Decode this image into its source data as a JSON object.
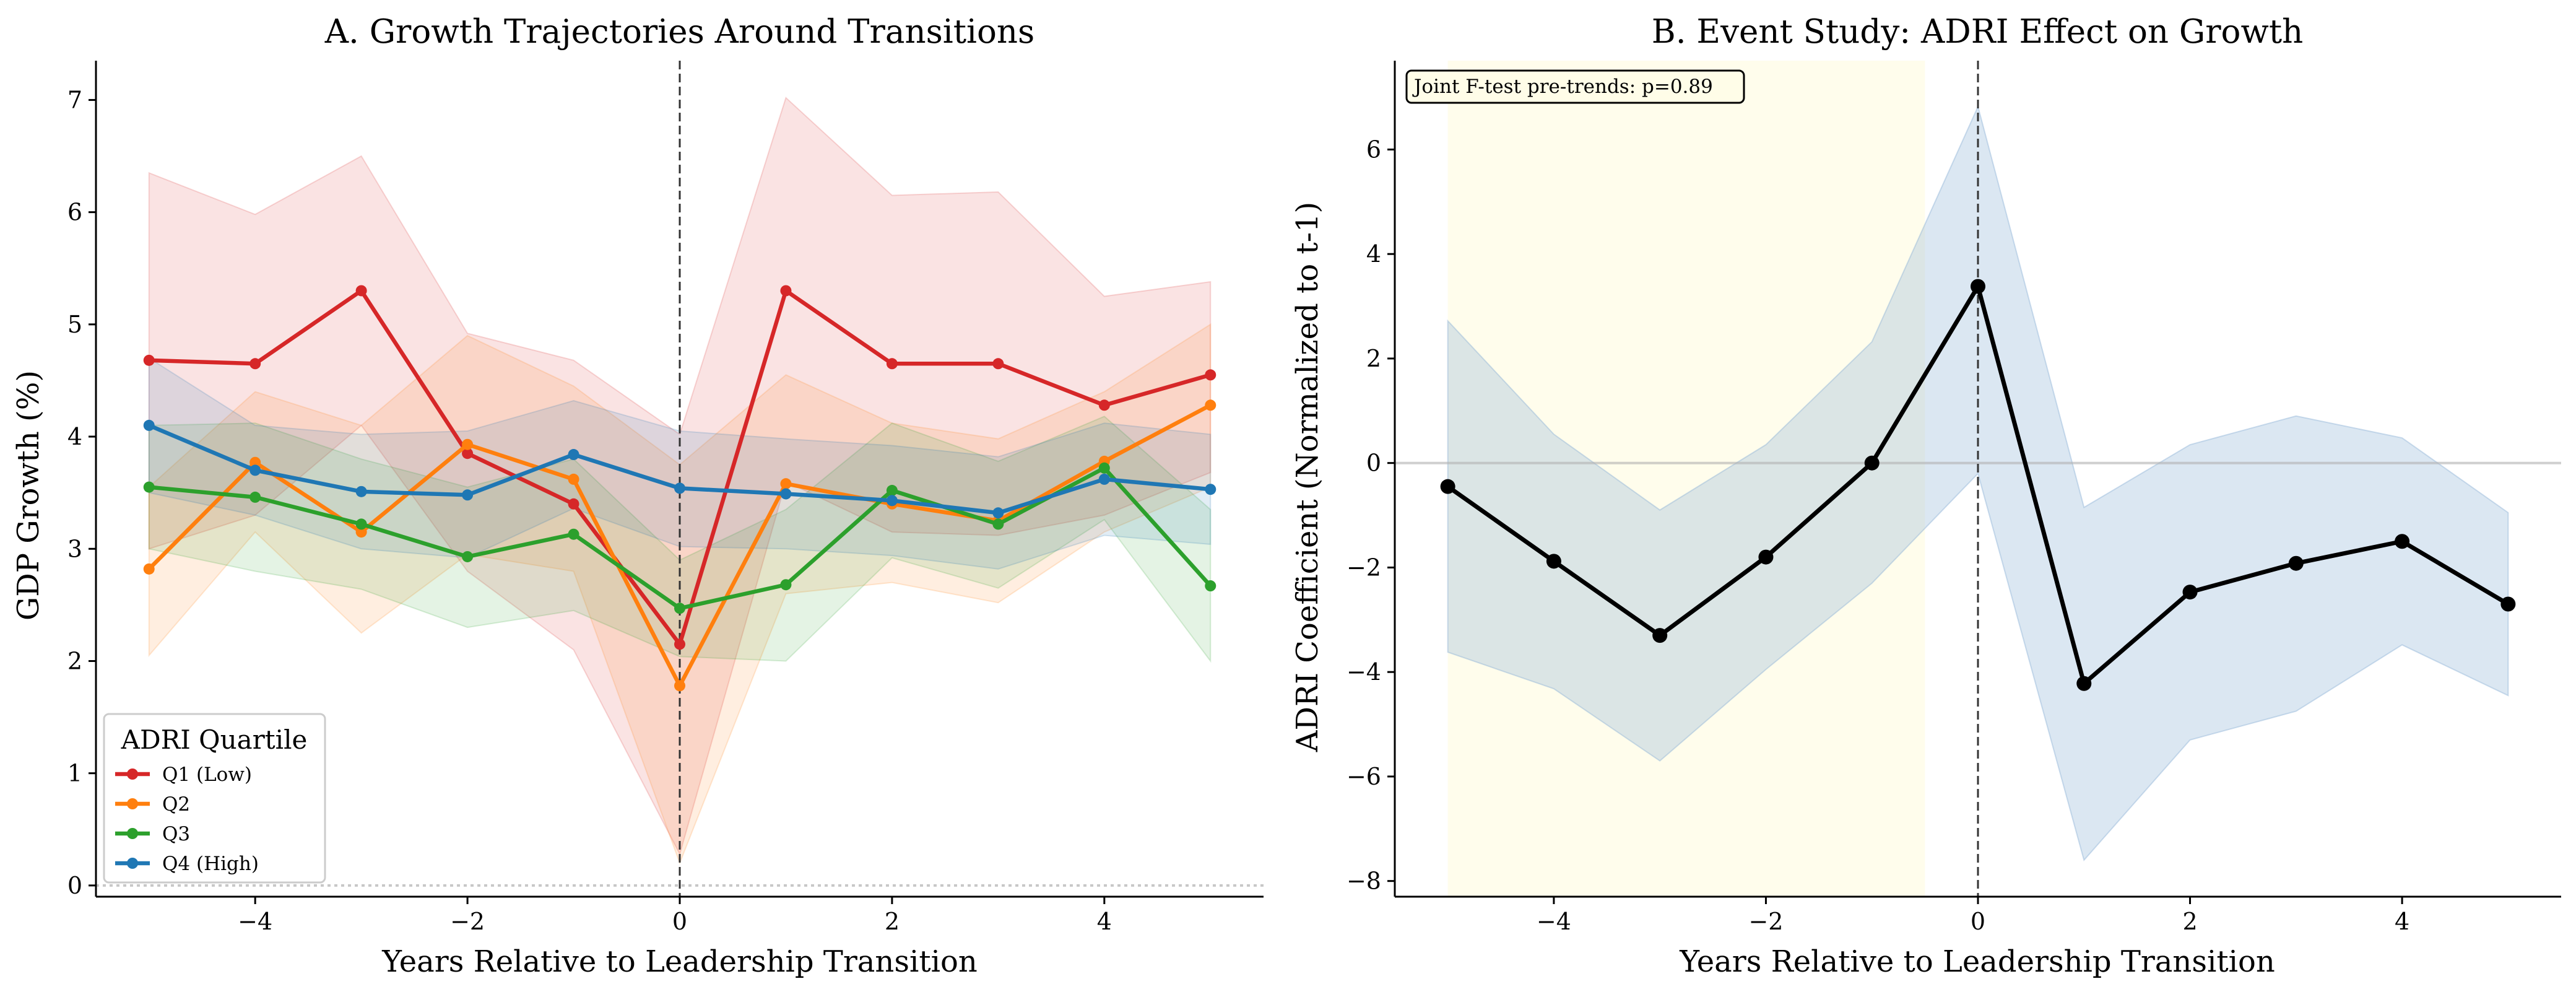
{
  "chart_data": [
    {
      "type": "line",
      "title": "A. Growth Trajectories Around Transitions",
      "xlabel": "Years Relative to Leadership Transition",
      "ylabel": "GDP Growth (%)",
      "xlim": [
        -5.5,
        5.5
      ],
      "ylim": [
        -0.1,
        7.35
      ],
      "xticks": [
        "−4",
        "−2",
        "0",
        "2",
        "4"
      ],
      "xtick_values": [
        -4,
        -2,
        0,
        2,
        4
      ],
      "yticks": [
        "0",
        "1",
        "2",
        "3",
        "4",
        "5",
        "6",
        "7"
      ],
      "ytick_values": [
        0,
        1,
        2,
        3,
        4,
        5,
        6,
        7
      ],
      "x": [
        -5,
        -4,
        -3,
        -2,
        -1,
        0,
        1,
        2,
        3,
        4,
        5
      ],
      "vline_x": 0,
      "hline_y": 0,
      "legend": {
        "title": "ADRI Quartile",
        "placement": "lower-left"
      },
      "series": [
        {
          "name": "Q1 (Low)",
          "color": "#d62728",
          "values": [
            4.68,
            4.65,
            5.3,
            3.85,
            3.4,
            2.15,
            5.3,
            4.65,
            4.65,
            4.28,
            4.55
          ],
          "upper": [
            6.35,
            5.98,
            6.5,
            4.92,
            4.68,
            4.02,
            7.02,
            6.15,
            6.18,
            5.25,
            5.38
          ],
          "lower": [
            3.0,
            3.3,
            4.1,
            2.8,
            2.1,
            0.28,
            3.6,
            3.15,
            3.12,
            3.3,
            3.68
          ]
        },
        {
          "name": "Q2",
          "color": "#ff7f0e",
          "values": [
            2.82,
            3.77,
            3.15,
            3.93,
            3.62,
            1.78,
            3.58,
            3.4,
            3.25,
            3.78,
            4.28
          ],
          "upper": [
            3.55,
            4.4,
            4.1,
            4.9,
            4.45,
            3.75,
            4.55,
            4.12,
            3.98,
            4.4,
            5.0
          ],
          "lower": [
            2.05,
            3.15,
            2.25,
            2.95,
            2.8,
            0.2,
            2.6,
            2.7,
            2.52,
            3.15,
            3.55
          ]
        },
        {
          "name": "Q3",
          "color": "#2ca02c",
          "values": [
            3.55,
            3.46,
            3.22,
            2.93,
            3.13,
            2.47,
            2.68,
            3.52,
            3.22,
            3.72,
            2.67
          ],
          "upper": [
            4.1,
            4.12,
            3.8,
            3.55,
            3.8,
            2.9,
            3.35,
            4.12,
            3.78,
            4.18,
            3.35
          ],
          "lower": [
            3.0,
            2.8,
            2.64,
            2.3,
            2.45,
            2.04,
            2.0,
            2.92,
            2.65,
            3.26,
            2.0
          ]
        },
        {
          "name": "Q4 (High)",
          "color": "#1f77b4",
          "values": [
            4.1,
            3.7,
            3.51,
            3.48,
            3.84,
            3.54,
            3.49,
            3.43,
            3.32,
            3.62,
            3.53
          ],
          "upper": [
            4.7,
            4.1,
            4.02,
            4.05,
            4.32,
            4.05,
            3.98,
            3.92,
            3.82,
            4.12,
            4.02
          ],
          "lower": [
            3.5,
            3.3,
            3.0,
            2.92,
            3.36,
            3.02,
            3.0,
            2.94,
            2.82,
            3.12,
            3.04
          ]
        }
      ]
    },
    {
      "type": "line",
      "title": "B. Event Study: ADRI Effect on Growth",
      "xlabel": "Years Relative to Leadership Transition",
      "ylabel": "ADRI Coefficient (Normalized to t-1)",
      "xlim": [
        -5.5,
        5.5
      ],
      "ylim": [
        -8.3,
        7.7
      ],
      "xticks": [
        "−4",
        "−2",
        "0",
        "2",
        "4"
      ],
      "xtick_values": [
        -4,
        -2,
        0,
        2,
        4
      ],
      "yticks": [
        "−8",
        "−6",
        "−4",
        "−2",
        "0",
        "2",
        "4",
        "6"
      ],
      "ytick_values": [
        -8,
        -6,
        -4,
        -2,
        0,
        2,
        4,
        6
      ],
      "x": [
        -5,
        -4,
        -3,
        -2,
        -1,
        0,
        1,
        2,
        3,
        4,
        5
      ],
      "vline_x": 0,
      "hline_y": 0,
      "pre_period_shade": [
        -5,
        -0.5
      ],
      "annotation": "Joint F-test pre-trends: p=0.89",
      "series": [
        {
          "color": "#000000",
          "band_color": "#8fb3d6",
          "values": [
            -0.45,
            -1.88,
            -3.3,
            -1.8,
            0.0,
            3.38,
            -4.22,
            -2.47,
            -1.92,
            -1.5,
            -2.7
          ],
          "upper": [
            2.72,
            0.55,
            -0.9,
            0.35,
            2.32,
            6.82,
            -0.85,
            0.35,
            0.9,
            0.48,
            -0.95
          ],
          "lower": [
            -3.62,
            -4.32,
            -5.7,
            -3.95,
            -2.3,
            -0.2,
            -7.6,
            -5.3,
            -4.75,
            -3.48,
            -4.45
          ]
        }
      ]
    }
  ]
}
